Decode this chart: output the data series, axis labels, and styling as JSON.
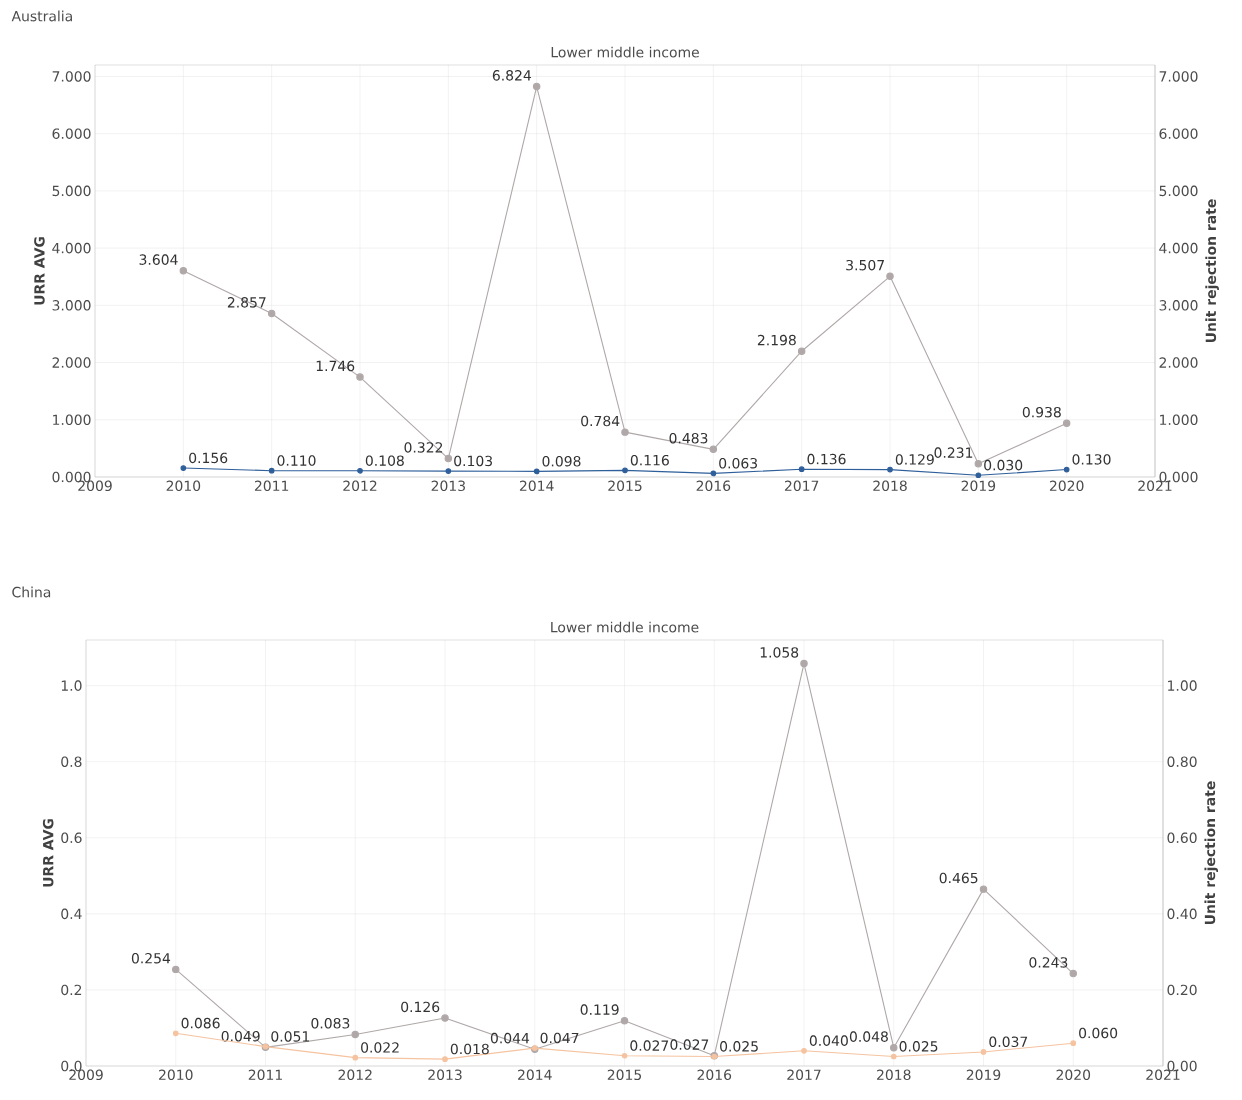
{
  "chart_data": [
    {
      "type": "line",
      "title": "Australia",
      "subtitle": "Lower middle income",
      "ylabel": "URR AVG",
      "y2label": "Unit rejection rate",
      "x": [
        2010,
        2011,
        2012,
        2013,
        2014,
        2015,
        2016,
        2017,
        2018,
        2019,
        2020
      ],
      "xlim": [
        2009,
        2021
      ],
      "xticks": [
        2009,
        2010,
        2011,
        2012,
        2013,
        2014,
        2015,
        2016,
        2017,
        2018,
        2019,
        2020,
        2021
      ],
      "ylim": [
        0,
        7.2
      ],
      "yticks": [
        {
          "value": 0,
          "label": "0.000"
        },
        {
          "value": 1,
          "label": "1.000"
        },
        {
          "value": 2,
          "label": "2.000"
        },
        {
          "value": 3,
          "label": "3.000"
        },
        {
          "value": 4,
          "label": "4.000"
        },
        {
          "value": 5,
          "label": "5.000"
        },
        {
          "value": 6,
          "label": "6.000"
        },
        {
          "value": 7,
          "label": "7.000"
        }
      ],
      "y2lim": [
        0,
        7.2
      ],
      "y2ticks": [
        {
          "value": 0,
          "label": "0.000"
        },
        {
          "value": 1,
          "label": "1.000"
        },
        {
          "value": 2,
          "label": "2.000"
        },
        {
          "value": 3,
          "label": "3.000"
        },
        {
          "value": 4,
          "label": "4.000"
        },
        {
          "value": 5,
          "label": "5.000"
        },
        {
          "value": 6,
          "label": "6.000"
        },
        {
          "value": 7,
          "label": "7.000"
        }
      ],
      "series": [
        {
          "color": "#b0a8a8",
          "values": [
            3.604,
            2.857,
            1.746,
            0.322,
            6.824,
            0.784,
            0.483,
            2.198,
            3.507,
            0.231,
            0.938
          ],
          "value_labels": [
            "3.604",
            "2.857",
            "1.746",
            "0.322",
            "6.824",
            "0.784",
            "0.483",
            "2.198",
            "3.507",
            "0.231",
            "0.938"
          ]
        },
        {
          "color": "#2f5f9a",
          "axis": "y2",
          "values": [
            0.156,
            0.11,
            0.108,
            0.103,
            0.098,
            0.116,
            0.063,
            0.136,
            0.129,
            0.03,
            0.13
          ],
          "value_labels": [
            "0.156",
            "0.110",
            "0.108",
            "0.103",
            "0.098",
            "0.116",
            "0.063",
            "0.136",
            "0.129",
            "0.030",
            "0.130"
          ]
        }
      ],
      "marker": "circle",
      "grid": true
    },
    {
      "type": "line",
      "title": "China",
      "subtitle": "Lower middle income",
      "ylabel": "URR AVG",
      "y2label": "Unit rejection rate",
      "x": [
        2010,
        2011,
        2012,
        2013,
        2014,
        2015,
        2016,
        2017,
        2018,
        2019,
        2020
      ],
      "xlim": [
        2009,
        2021
      ],
      "xticks": [
        2009,
        2010,
        2011,
        2012,
        2013,
        2014,
        2015,
        2016,
        2017,
        2018,
        2019,
        2020,
        2021
      ],
      "ylim": [
        0,
        1.12
      ],
      "yticks": [
        {
          "value": 0,
          "label": "0.0"
        },
        {
          "value": 0.2,
          "label": "0.2"
        },
        {
          "value": 0.4,
          "label": "0.4"
        },
        {
          "value": 0.6,
          "label": "0.6"
        },
        {
          "value": 0.8,
          "label": "0.8"
        },
        {
          "value": 1,
          "label": "1.0"
        }
      ],
      "y2lim": [
        0,
        1.12
      ],
      "y2ticks": [
        {
          "value": 0,
          "label": "0.00"
        },
        {
          "value": 0.2,
          "label": "0.20"
        },
        {
          "value": 0.4,
          "label": "0.40"
        },
        {
          "value": 0.6,
          "label": "0.60"
        },
        {
          "value": 0.8,
          "label": "0.80"
        },
        {
          "value": 1,
          "label": "1.00"
        }
      ],
      "series": [
        {
          "color": "#b0a8a8",
          "values": [
            0.254,
            0.049,
            0.083,
            0.126,
            0.044,
            0.119,
            0.027,
            1.058,
            0.048,
            0.465,
            0.243
          ],
          "value_labels": [
            "0.254",
            "0.049",
            "0.083",
            "0.126",
            "0.044",
            "0.119",
            "0.027",
            "1.058",
            "0.048",
            "0.465",
            "0.243"
          ]
        },
        {
          "color": "#f5c3a0",
          "axis": "y2",
          "values": [
            0.086,
            0.051,
            0.022,
            0.018,
            0.047,
            0.027,
            0.025,
            0.04,
            0.025,
            0.037,
            0.06
          ],
          "value_labels": [
            "0.086",
            "0.051",
            "0.022",
            "0.018",
            "0.047",
            "0.027",
            "0.025",
            "0.040",
            "0.025",
            "0.037",
            "0.060"
          ]
        }
      ],
      "marker": "circle",
      "grid": true
    }
  ]
}
